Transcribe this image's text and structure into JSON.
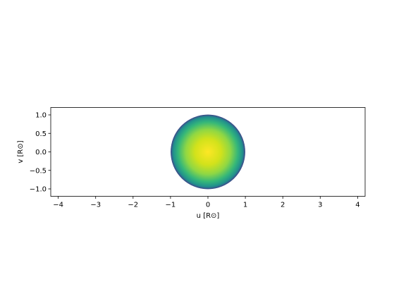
{
  "chart_data": {
    "type": "scatter",
    "title": "",
    "xlabel": "u [R⊙]",
    "ylabel": "v [R⊙]",
    "xlim": [
      -4.2,
      4.2
    ],
    "ylim": [
      -1.2,
      1.2
    ],
    "xticks": [
      -4,
      -3,
      -2,
      -1,
      0,
      1,
      2,
      3,
      4
    ],
    "xtick_labels": [
      "−4",
      "−3",
      "−2",
      "−1",
      "0",
      "1",
      "2",
      "3",
      "4"
    ],
    "yticks": [
      -1.0,
      -0.5,
      0.0,
      0.5,
      1.0
    ],
    "ytick_labels": [
      "−1.0",
      "−0.5",
      "0.0",
      "0.5",
      "1.0"
    ],
    "aspect": "equal",
    "grid": false,
    "disk": {
      "center": [
        0,
        0
      ],
      "radius": 1.0,
      "colormap": "viridis",
      "description_levels": [
        0.98,
        0.9,
        0.8,
        0.7,
        0.6,
        0.5,
        0.4,
        0.3,
        0.2,
        0.1
      ]
    },
    "colors": {
      "limb": "#3b528b",
      "edge_teal": "#21918c",
      "mid_green": "#5ec962",
      "center_yellow": "#fde725"
    }
  }
}
